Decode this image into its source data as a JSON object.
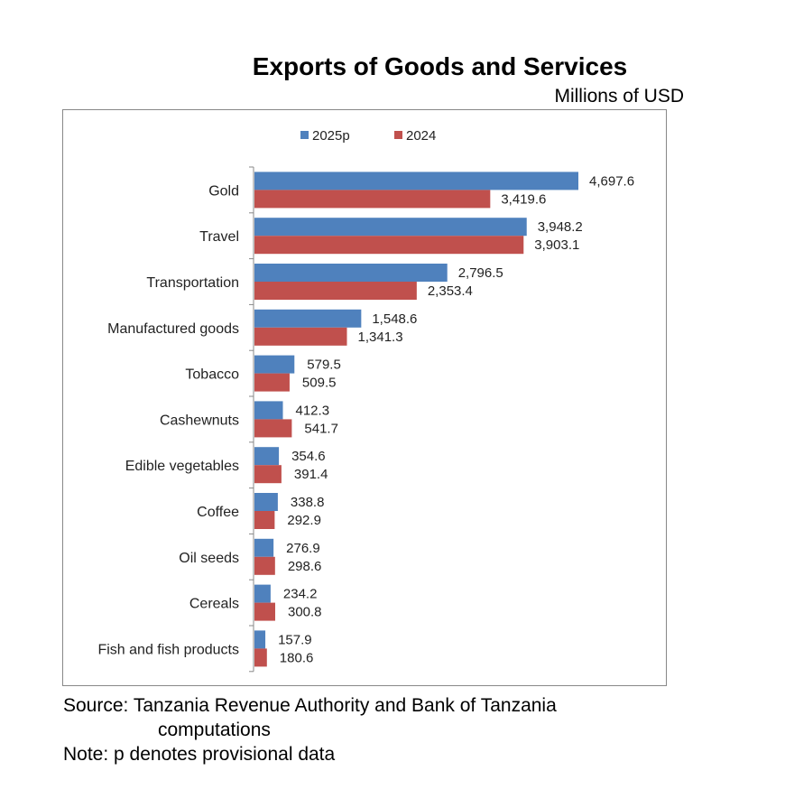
{
  "chart_data": {
    "type": "bar",
    "orientation": "horizontal",
    "title": "Exports of Goods and Services",
    "unit_label": "Millions of USD",
    "categories": [
      "Gold",
      "Travel",
      "Transportation",
      "Manufactured goods",
      "Tobacco",
      "Cashewnuts",
      "Edible vegetables",
      "Coffee",
      "Oil seeds",
      "Cereals",
      "Fish and fish products"
    ],
    "series": [
      {
        "name": "2025p",
        "color": "#4f81bd",
        "values": [
          4697.6,
          3948.2,
          2796.5,
          1548.6,
          579.5,
          412.3,
          354.6,
          338.8,
          276.9,
          234.2,
          157.9
        ],
        "labels": [
          "4,697.6",
          "3,948.2",
          "2,796.5",
          "1,548.6",
          "579.5",
          "412.3",
          "354.6",
          "338.8",
          "276.9",
          "234.2",
          "157.9"
        ]
      },
      {
        "name": "2024",
        "color": "#c0504d",
        "values": [
          3419.6,
          3903.1,
          2353.4,
          1341.3,
          509.5,
          541.7,
          391.4,
          292.9,
          298.6,
          300.8,
          180.6
        ],
        "labels": [
          "3,419.6",
          "3,903.1",
          "2,353.4",
          "1,341.3",
          "509.5",
          "541.7",
          "391.4",
          "292.9",
          "298.6",
          "300.8",
          "180.6"
        ]
      }
    ],
    "legend_position": "top",
    "grid": false
  },
  "footer": {
    "source": "Source: Tanzania Revenue Authority and Bank of Tanzania",
    "source_cont": "computations",
    "note": "Note: p denotes provisional data"
  }
}
